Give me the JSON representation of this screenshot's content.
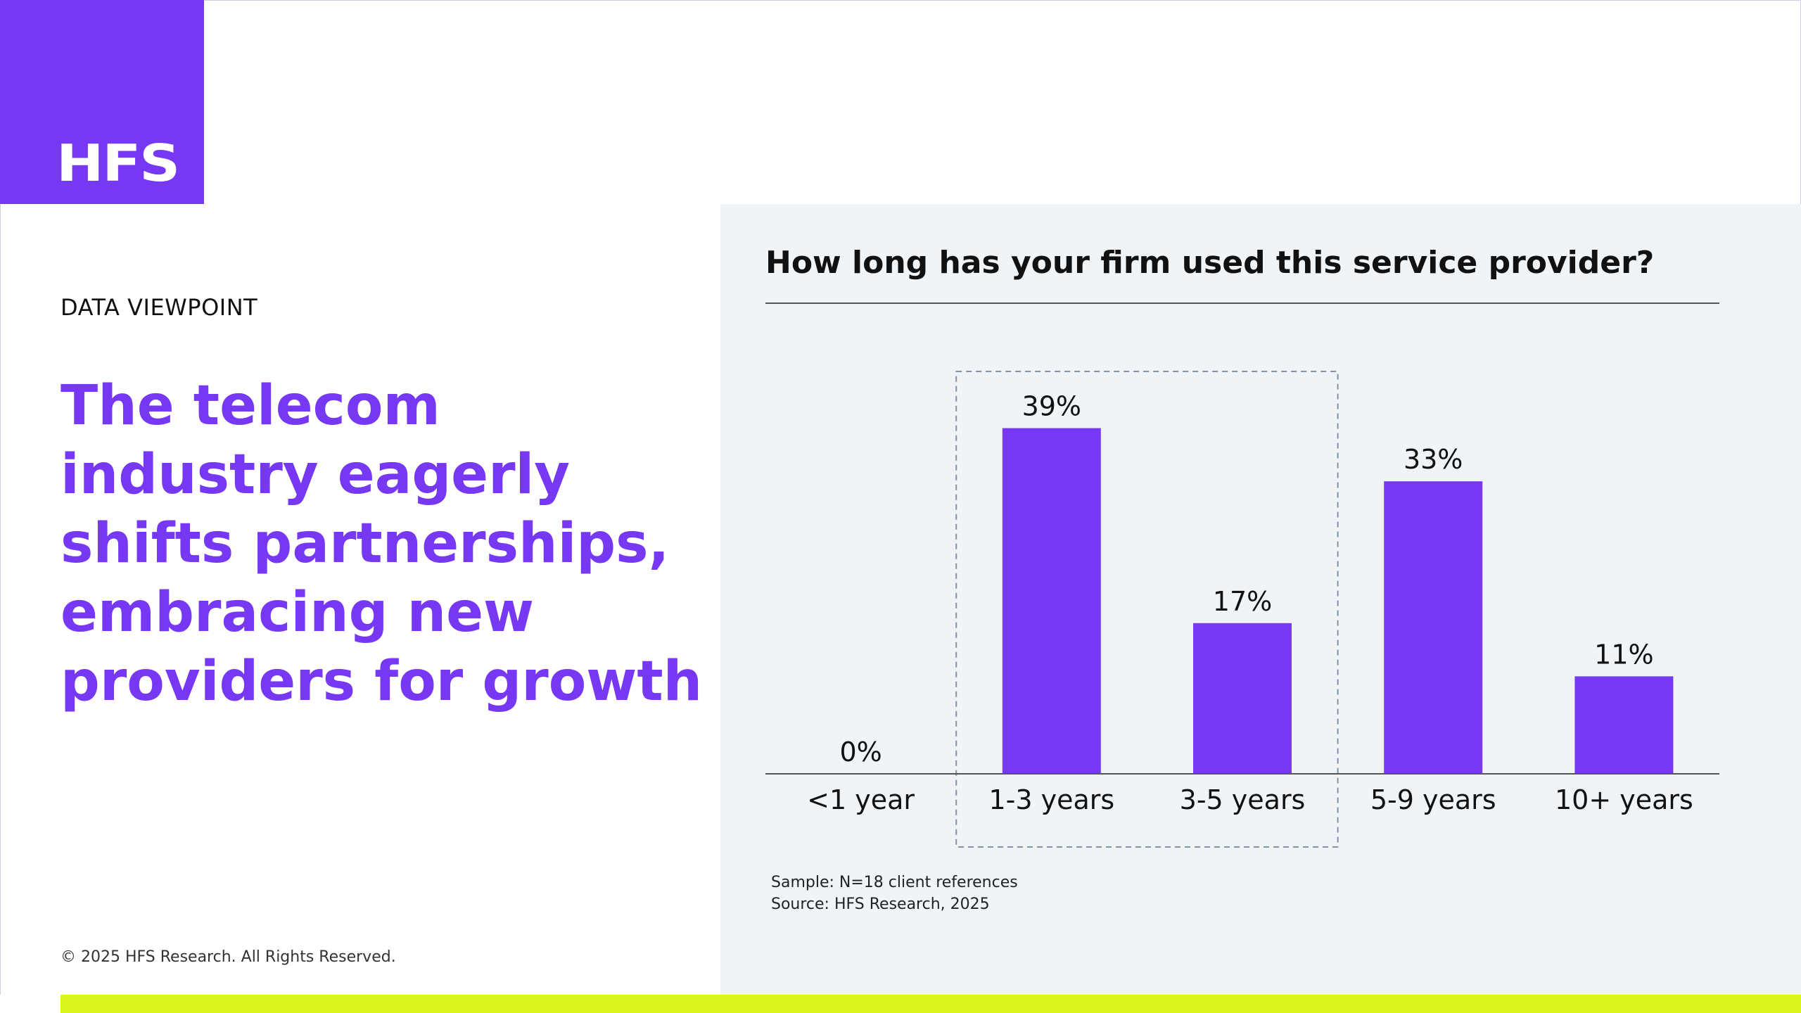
{
  "brand": {
    "logo_text": "HFS",
    "purple": "#7638f2",
    "lime": "#d9f71e",
    "panel_bg": "#f0f4f7"
  },
  "left": {
    "kicker": "DATA VIEWPOINT",
    "headline": "The telecom industry eagerly shifts partnerships, embracing new providers for growth",
    "copyright": "© 2025 HFS Research. All Rights Reserved."
  },
  "notes": {
    "sample": "Sample: N=18 client references",
    "source": "Source: HFS Research, 2025"
  },
  "chart_data": {
    "type": "bar",
    "title": "How long has your firm used this service provider?",
    "categories": [
      "<1 year",
      "1-3 years",
      "3-5 years",
      "5-9 years",
      "10+ years"
    ],
    "values": [
      0,
      39,
      17,
      33,
      11
    ],
    "value_labels": [
      "0%",
      "39%",
      "17%",
      "33%",
      "11%"
    ],
    "unit": "%",
    "ylim": [
      0,
      45
    ],
    "grid": false,
    "legend": "none",
    "bar_color": "#7638f2",
    "highlight": {
      "categories": [
        "1-3 years",
        "3-5 years"
      ],
      "style": "dashed box"
    }
  }
}
